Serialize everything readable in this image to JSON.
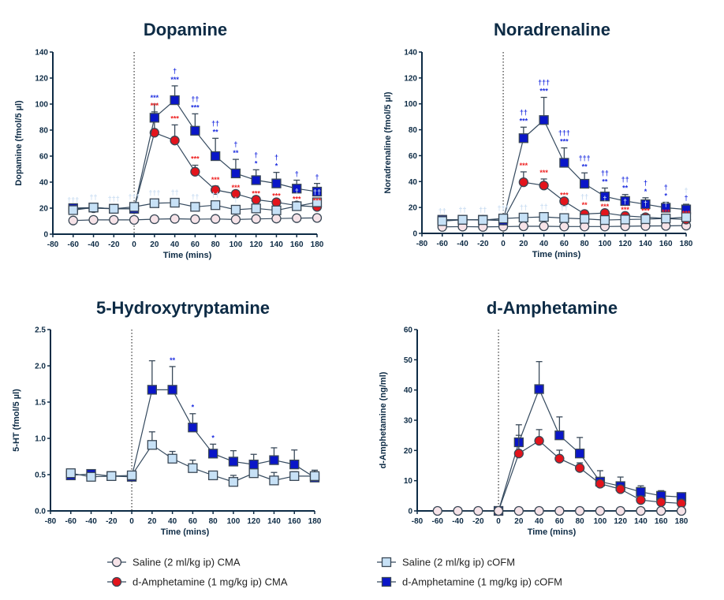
{
  "colors": {
    "axis": "#0d2b45",
    "saline_cma": "#f6e3e8",
    "amph_cma": "#e3141c",
    "saline_cofm": "#c7e1f6",
    "amph_cofm": "#0a16c8",
    "ann_blue": "#1f2fe0",
    "ann_red": "#ee2020",
    "ann_light": "#c9ddf2",
    "marker_edge": "#3a4856"
  },
  "legend": [
    {
      "key": "saline_cma",
      "label": "Saline (2 ml/kg ip) CMA",
      "marker": "circle"
    },
    {
      "key": "saline_cofm",
      "label": "Saline (2 ml/kg ip) cOFM",
      "marker": "square"
    },
    {
      "key": "amph_cma",
      "label": "d-Amphetamine (1 mg/kg ip) CMA",
      "marker": "circle"
    },
    {
      "key": "amph_cofm",
      "label": "d-Amphetamine (1 mg/kg ip) cOFM",
      "marker": "square"
    }
  ],
  "chart_data": [
    {
      "type": "line",
      "title": "Dopamine",
      "xlabel": "Time (mins)",
      "ylabel": "Dopamine (fmol/5 µl)",
      "xlim": [
        -80,
        180
      ],
      "xticks": [
        -80,
        -60,
        -40,
        -20,
        0,
        20,
        40,
        60,
        80,
        100,
        120,
        140,
        160,
        180
      ],
      "ylim": [
        0,
        140
      ],
      "yticks": [
        0,
        20,
        40,
        60,
        80,
        100,
        120,
        140
      ],
      "ytick_labels": [
        "0",
        "20",
        "40",
        "60",
        "80",
        "100",
        "120",
        "140"
      ],
      "vline_x": 0,
      "x": [
        -60,
        -40,
        -20,
        0,
        20,
        40,
        60,
        80,
        100,
        120,
        140,
        160,
        180
      ],
      "series": [
        {
          "key": "saline_cma",
          "marker": "circle",
          "values": [
            10.5,
            11,
            11,
            11,
            11.5,
            11.8,
            11.5,
            11.7,
            11.3,
            11.7,
            12,
            12.3,
            12.5
          ]
        },
        {
          "key": "amph_cma",
          "marker": "circle",
          "values": [
            19.5,
            20,
            19.5,
            19.5,
            78,
            72,
            48,
            34,
            31,
            26.5,
            24.5,
            22,
            21
          ],
          "sem_upper": [
            null,
            null,
            null,
            null,
            94,
            84,
            53,
            37,
            null,
            null,
            null,
            null,
            null
          ],
          "annotations": [
            "",
            "",
            "",
            "",
            "***",
            "***",
            "***",
            "***",
            "***",
            "***",
            "***",
            "***",
            "***"
          ]
        },
        {
          "key": "amph_cofm",
          "marker": "square",
          "values": [
            20,
            20.5,
            19.5,
            19.5,
            89.5,
            103,
            79.5,
            60,
            46.7,
            41.5,
            39,
            35,
            32.7
          ],
          "sem_upper": [
            null,
            null,
            null,
            null,
            100,
            114,
            92.5,
            73.7,
            57.5,
            49.5,
            47.5,
            41.5,
            39
          ],
          "annotations": [
            "",
            "",
            "",
            "",
            "***",
            "†|***",
            "††|***",
            "††|**",
            "†|**",
            "†|*",
            "†|*",
            "†",
            "†"
          ]
        },
        {
          "key": "saline_cofm",
          "marker": "square",
          "values": [
            18.5,
            20.5,
            19.5,
            21,
            23.8,
            24.2,
            21,
            22.3,
            18.8,
            19.8,
            18.3,
            21.5,
            24.5
          ],
          "annotations": [
            "†††",
            "††",
            "†††",
            "†††",
            "†††",
            "††",
            "††",
            "††",
            "†",
            "",
            "",
            "†",
            "††"
          ]
        }
      ]
    },
    {
      "type": "line",
      "title": "Noradrenaline",
      "xlabel": "Time (mins)",
      "ylabel": "Noradrenaline (fmol/5 µl)",
      "xlim": [
        -80,
        180
      ],
      "xticks": [
        -80,
        -60,
        -40,
        -20,
        0,
        20,
        40,
        60,
        80,
        100,
        120,
        140,
        160,
        180
      ],
      "ylim": [
        0,
        140
      ],
      "yticks": [
        0,
        20,
        40,
        60,
        80,
        100,
        120,
        140
      ],
      "ytick_labels": [
        "0",
        "20",
        "40",
        "60",
        "80",
        "100",
        "120",
        "140"
      ],
      "vline_x": 0,
      "x": [
        -60,
        -40,
        -20,
        0,
        20,
        40,
        60,
        80,
        100,
        120,
        140,
        160,
        180
      ],
      "series": [
        {
          "key": "saline_cma",
          "marker": "circle",
          "values": [
            5,
            5.2,
            5,
            5.2,
            5.5,
            5.5,
            5.3,
            5.3,
            5.3,
            5.5,
            5.7,
            5.8,
            6
          ]
        },
        {
          "key": "amph_cma",
          "marker": "circle",
          "values": [
            10.5,
            10.5,
            10.5,
            10,
            39.5,
            37,
            24.8,
            15,
            15.7,
            13.5,
            12.5,
            11.5,
            10.7
          ],
          "sem_upper": [
            null,
            null,
            null,
            null,
            47.5,
            42,
            null,
            17,
            null,
            null,
            null,
            null,
            null
          ],
          "annotations": [
            "",
            "",
            "",
            "",
            "***",
            "***",
            "***",
            "**",
            "***",
            "***",
            "***",
            "***",
            "***"
          ]
        },
        {
          "key": "amph_cofm",
          "marker": "square",
          "values": [
            10.5,
            10.5,
            10.5,
            10,
            73.5,
            87.5,
            54.5,
            38.3,
            28.5,
            25,
            22.5,
            19.8,
            18.5
          ],
          "sem_upper": [
            null,
            null,
            null,
            null,
            82,
            105,
            66,
            46.7,
            35,
            30,
            27.5,
            24,
            22.5
          ],
          "annotations": [
            "",
            "",
            "",
            "",
            "††|***",
            "†††|***",
            "†††|***",
            "†††|**",
            "††|**",
            "††|**",
            "†|*",
            "†|*",
            "†"
          ]
        },
        {
          "key": "saline_cofm",
          "marker": "square",
          "values": [
            9.5,
            10.5,
            10.3,
            11.5,
            12.2,
            12.7,
            11.8,
            11.2,
            10.3,
            10.7,
            11,
            11.5,
            12.5
          ],
          "annotations": [
            "††",
            "††",
            "††",
            "†††",
            "††",
            "††",
            "††",
            "††",
            "†",
            "†",
            "†",
            "†",
            "†"
          ]
        }
      ]
    },
    {
      "type": "line",
      "title": "5-Hydroxytryptamine",
      "xlabel": "Time (mins)",
      "ylabel": "5-HT (fmol/5 µl)",
      "xlim": [
        -80,
        180
      ],
      "xticks": [
        -80,
        -60,
        -40,
        -20,
        0,
        20,
        40,
        60,
        80,
        100,
        120,
        140,
        160,
        180
      ],
      "ylim": [
        0,
        2.5
      ],
      "yticks": [
        0,
        0.5,
        1,
        1.5,
        2,
        2.5
      ],
      "ytick_labels": [
        "0.0",
        "0.5",
        "1.0",
        "1.5",
        "2.0",
        "2.5"
      ],
      "vline_x": 0,
      "x": [
        -60,
        -40,
        -20,
        0,
        20,
        40,
        60,
        80,
        100,
        120,
        140,
        160,
        180
      ],
      "series": [
        {
          "key": "amph_cofm",
          "marker": "square",
          "values": [
            0.49,
            0.51,
            0.48,
            0.47,
            1.67,
            1.67,
            1.15,
            0.79,
            0.68,
            0.64,
            0.7,
            0.64,
            0.46
          ],
          "sem_upper": [
            null,
            null,
            null,
            null,
            2.07,
            1.99,
            1.34,
            0.92,
            0.83,
            0.78,
            0.87,
            0.84,
            0.56
          ],
          "annotations": [
            "",
            "",
            "",
            "",
            "",
            "**",
            "*",
            "*",
            "",
            "",
            "",
            "",
            ""
          ]
        },
        {
          "key": "saline_cofm",
          "marker": "square",
          "values": [
            0.52,
            0.47,
            0.48,
            0.49,
            0.91,
            0.72,
            0.59,
            0.49,
            0.4,
            0.52,
            0.42,
            0.48,
            0.48
          ],
          "sem_upper": [
            null,
            null,
            null,
            null,
            1.09,
            0.82,
            0.7,
            null,
            0.49,
            0.55,
            0.53,
            0.54,
            0.56
          ]
        }
      ]
    },
    {
      "type": "line",
      "title": "d-Amphetamine",
      "xlabel": "Time (mins)",
      "ylabel": "d-Amphetamine (ng/ml)",
      "xlim": [
        -80,
        180
      ],
      "xticks": [
        -80,
        -60,
        -40,
        -20,
        0,
        20,
        40,
        60,
        80,
        100,
        120,
        140,
        160,
        180
      ],
      "ylim": [
        0,
        60
      ],
      "yticks": [
        0,
        10,
        20,
        30,
        40,
        50,
        60
      ],
      "ytick_labels": [
        "0",
        "10",
        "20",
        "30",
        "40",
        "50",
        "60"
      ],
      "vline_x": 0,
      "x": [
        -60,
        -40,
        -20,
        0,
        20,
        40,
        60,
        80,
        100,
        120,
        140,
        160,
        180
      ],
      "series": [
        {
          "key": "amph_cofm",
          "marker": "square",
          "values": [
            null,
            null,
            null,
            0,
            22.7,
            40.3,
            25,
            19,
            9.7,
            8.2,
            6.3,
            5,
            4.6
          ],
          "sem_upper": [
            null,
            null,
            null,
            null,
            28.5,
            49.4,
            31.1,
            24.3,
            13.3,
            11.2,
            8.3,
            6.7,
            5.8
          ]
        },
        {
          "key": "amph_cma",
          "marker": "circle",
          "values": [
            null,
            null,
            null,
            0,
            19,
            23.2,
            17.3,
            14.2,
            9,
            7.2,
            3.6,
            2.9,
            2.5
          ],
          "sem_upper": [
            null,
            null,
            null,
            null,
            25,
            26.9,
            20.1,
            15.9,
            null,
            null,
            null,
            null,
            null
          ]
        },
        {
          "key": "saline_cma",
          "marker": "circle",
          "values": [
            0,
            0,
            0,
            0,
            0,
            0,
            0,
            0,
            0,
            0,
            0,
            0,
            0
          ]
        }
      ]
    }
  ]
}
